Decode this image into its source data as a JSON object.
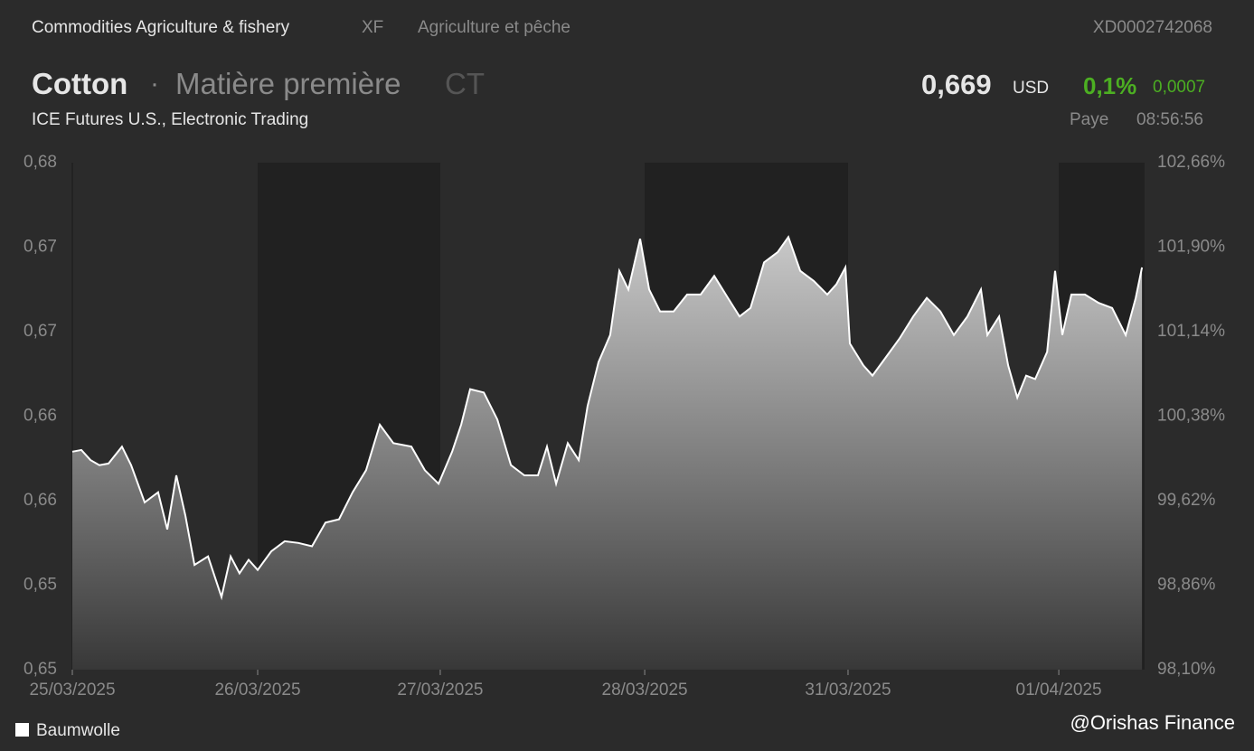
{
  "header": {
    "breadcrumb": [
      "Commodities Agriculture & fishery",
      "XF",
      "Agriculture et pêche"
    ],
    "isin": "XD0002742068",
    "separator": "·",
    "asset_class": "Matière première",
    "symbol": "CT",
    "exchange": "ICE Futures U.S., Electronic Trading",
    "price": "0,669",
    "currency": "USD",
    "change_pct": "0,1%",
    "change_abs": "0,0007",
    "status": "Paye",
    "time": "08:56:56"
  },
  "watermark": "@Orishas Finance",
  "chart_data": {
    "type": "area",
    "title": "Cotton",
    "x": [
      0,
      0.049,
      0.098,
      0.146,
      0.195,
      0.268,
      0.317,
      0.39,
      0.463,
      0.512,
      0.561,
      0.61,
      0.659,
      0.732,
      0.805,
      0.854,
      0.902,
      0.951,
      1,
      1.073,
      1.146,
      1.22,
      1.293,
      1.366,
      1.439,
      1.512,
      1.585,
      1.659,
      1.732,
      1.829,
      1.902,
      1.976,
      2.049,
      2.098,
      2.146,
      2.22,
      2.293,
      2.366,
      2.439,
      2.512,
      2.561,
      2.61,
      2.673,
      2.732,
      2.78,
      2.839,
      2.902,
      2.951,
      3,
      3.063,
      3.112,
      3.171,
      3.244,
      3.317,
      3.39,
      3.463,
      3.537,
      3.6,
      3.659,
      3.732,
      3.805,
      3.863,
      3.927,
      4,
      4.073,
      4.122,
      4.171,
      4.195,
      4.268,
      4.317,
      4.39,
      4.463,
      4.537,
      4.61,
      4.683,
      4.756,
      4.829,
      4.902,
      4.937,
      5,
      5.049,
      5.098,
      5.146,
      5.195,
      5.259,
      5.302,
      5.341,
      5.39,
      5.463,
      5.537,
      5.61,
      5.683,
      5.737,
      5.771
    ],
    "series": [
      {
        "name": "Baumwolle",
        "color": "#ffffff",
        "values": [
          0.6629,
          0.663,
          0.6624,
          0.6621,
          0.6622,
          0.6632,
          0.6621,
          0.6599,
          0.6605,
          0.6583,
          0.6615,
          0.6591,
          0.6562,
          0.6567,
          0.6543,
          0.6567,
          0.6557,
          0.6565,
          0.6559,
          0.657,
          0.6576,
          0.6575,
          0.6573,
          0.6587,
          0.6589,
          0.6605,
          0.6618,
          0.6645,
          0.6634,
          0.6632,
          0.6618,
          0.661,
          0.6629,
          0.6645,
          0.6666,
          0.6664,
          0.6648,
          0.6621,
          0.6615,
          0.6615,
          0.6632,
          0.661,
          0.6634,
          0.6624,
          0.6656,
          0.6682,
          0.6698,
          0.6736,
          0.6725,
          0.6755,
          0.6725,
          0.6712,
          0.6712,
          0.6722,
          0.6722,
          0.6733,
          0.672,
          0.6709,
          0.6714,
          0.6741,
          0.6747,
          0.6756,
          0.6736,
          0.673,
          0.6722,
          0.6728,
          0.6738,
          0.6693,
          0.668,
          0.6674,
          0.6685,
          0.6696,
          0.6709,
          0.672,
          0.6712,
          0.6698,
          0.6709,
          0.6725,
          0.6698,
          0.6709,
          0.668,
          0.6661,
          0.6674,
          0.6672,
          0.6688,
          0.6736,
          0.6698,
          0.6722,
          0.6722,
          0.6717,
          0.6714,
          0.6698,
          0.672,
          0.6738
        ]
      }
    ],
    "xlim": [
      0,
      5.785
    ],
    "xticks": [
      {
        "value": 0,
        "label": "25/03/2025"
      },
      {
        "value": 1,
        "label": "26/03/2025"
      },
      {
        "value": 1.985,
        "label": "27/03/2025"
      },
      {
        "value": 3.088,
        "label": "28/03/2025"
      },
      {
        "value": 4.185,
        "label": "31/03/2025"
      },
      {
        "value": 5.322,
        "label": "01/04/2025"
      }
    ],
    "ylim": [
      0.65,
      0.68
    ],
    "yticks": [
      {
        "value": 0.68,
        "label": "0,68"
      },
      {
        "value": 0.675,
        "label": "0,67"
      },
      {
        "value": 0.67,
        "label": "0,67"
      },
      {
        "value": 0.665,
        "label": "0,66"
      },
      {
        "value": 0.66,
        "label": "0,66"
      },
      {
        "value": 0.655,
        "label": "0,65"
      },
      {
        "value": 0.65,
        "label": "0,65"
      }
    ],
    "y2lim": [
      98.1,
      102.66
    ],
    "y2ticks": [
      {
        "value": 102.66,
        "label": "102,66%"
      },
      {
        "value": 101.9,
        "label": "101,90%"
      },
      {
        "value": 101.14,
        "label": "101,14%"
      },
      {
        "value": 100.38,
        "label": "100,38%"
      },
      {
        "value": 99.62,
        "label": "99,62%"
      },
      {
        "value": 98.86,
        "label": "98,86%"
      },
      {
        "value": 98.1,
        "label": "98,10%"
      }
    ]
  }
}
